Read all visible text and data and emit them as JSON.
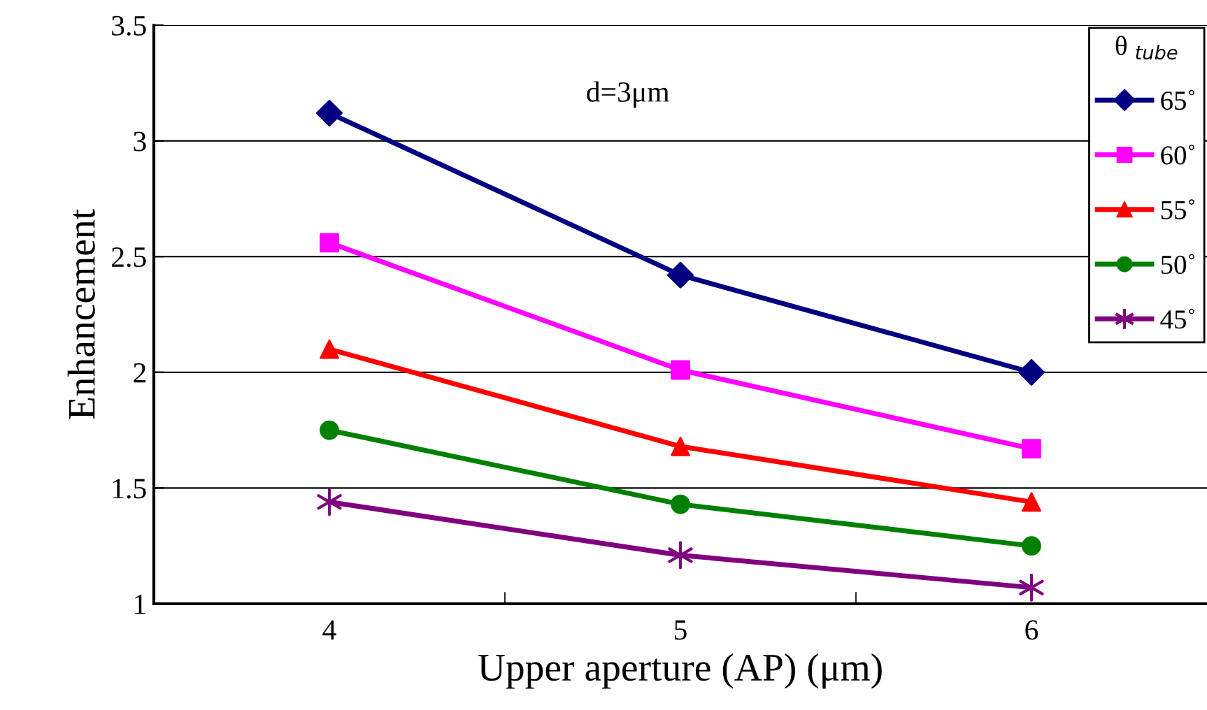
{
  "chart_data": {
    "type": "line",
    "xlabel": "Upper aperture (AP) (μm)",
    "ylabel": "Enhancement",
    "legend_title": "θ $_{tube}$",
    "annotations": [
      "d=3μm"
    ],
    "x": [
      4,
      5,
      6
    ],
    "xlim": [
      3.5,
      6.5
    ],
    "xticks": [
      4,
      {
        "value": 4.5,
        "label": null
      },
      5,
      {
        "value": 5.5,
        "label": null
      },
      6
    ],
    "ylim": [
      1,
      3.5
    ],
    "yticks": [
      1,
      1.5,
      2,
      2.5,
      3,
      3.5
    ],
    "grid": "y",
    "legend": "top right",
    "series": [
      {
        "name": "65˚",
        "color": "#000080",
        "marker": "diamond",
        "values": [
          3.12,
          2.42,
          2.0
        ]
      },
      {
        "name": "60˚",
        "color": "#ff00ff",
        "marker": "square",
        "values": [
          2.56,
          2.01,
          1.67
        ]
      },
      {
        "name": "55˚",
        "color": "#ff0000",
        "marker": "triangle",
        "values": [
          2.1,
          1.68,
          1.44
        ]
      },
      {
        "name": "50˚",
        "color": "#008000",
        "marker": "circle",
        "values": [
          1.75,
          1.43,
          1.25
        ]
      },
      {
        "name": "45˚",
        "color": "#800080",
        "marker": "cross",
        "values": [
          1.44,
          1.21,
          1.07
        ]
      }
    ]
  }
}
